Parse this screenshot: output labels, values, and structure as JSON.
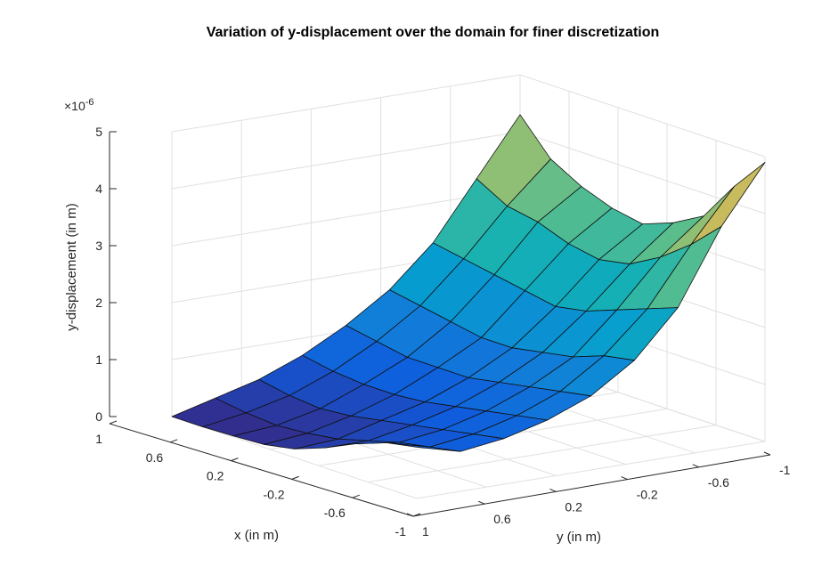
{
  "chart_data": {
    "type": "surface",
    "title": "Variation of y-displacement over the domain for finer discretization",
    "xlabel": "x (in m)",
    "ylabel": "y (in m)",
    "zlabel": "y-displacement (in m)",
    "z_exponent_label": "×10",
    "z_exponent": "-6",
    "xlim": [
      -1,
      1
    ],
    "ylim": [
      -1,
      1
    ],
    "zlim": [
      0,
      5
    ],
    "z_unit_scale": 1e-06,
    "x_ticks": [
      "1",
      "0.6",
      "0.2",
      "-0.2",
      "-0.6",
      "-1"
    ],
    "y_ticks": [
      "1",
      "0.6",
      "0.2",
      "-0.2",
      "-0.6",
      "-1"
    ],
    "z_ticks": [
      "0",
      "1",
      "2",
      "3",
      "4",
      "5"
    ],
    "grid": true,
    "colormap": "parula",
    "x": [
      -1,
      -0.75,
      -0.5,
      -0.25,
      0,
      0.25,
      0.5,
      0.75,
      1
    ],
    "y": [
      -1,
      -0.75,
      -0.5,
      -0.25,
      0,
      0.25,
      0.5,
      0.75,
      1
    ],
    "z": [
      [
        4.9,
        3.9,
        2.6,
        1.8,
        1.3,
        1.0,
        0.8,
        0.7,
        0.9
      ],
      [
        4.3,
        3.4,
        2.4,
        1.7,
        1.2,
        0.9,
        0.7,
        0.6,
        0.8
      ],
      [
        3.6,
        3.0,
        2.2,
        1.5,
        1.1,
        0.8,
        0.6,
        0.5,
        0.6
      ],
      [
        3.3,
        2.7,
        2.0,
        1.4,
        1.0,
        0.7,
        0.5,
        0.35,
        0.35
      ],
      [
        3.1,
        2.6,
        1.9,
        1.3,
        0.9,
        0.6,
        0.4,
        0.2,
        0.15
      ],
      [
        3.2,
        2.7,
        2.0,
        1.3,
        0.9,
        0.55,
        0.3,
        0.12,
        0.05
      ],
      [
        3.4,
        2.9,
        2.1,
        1.4,
        0.9,
        0.55,
        0.25,
        0.08,
        0.02
      ],
      [
        3.7,
        3.0,
        2.2,
        1.5,
        1.0,
        0.6,
        0.3,
        0.12,
        0.0
      ],
      [
        4.3,
        3.3,
        2.3,
        1.6,
        1.1,
        0.7,
        0.4,
        0.2,
        0.0
      ]
    ]
  }
}
